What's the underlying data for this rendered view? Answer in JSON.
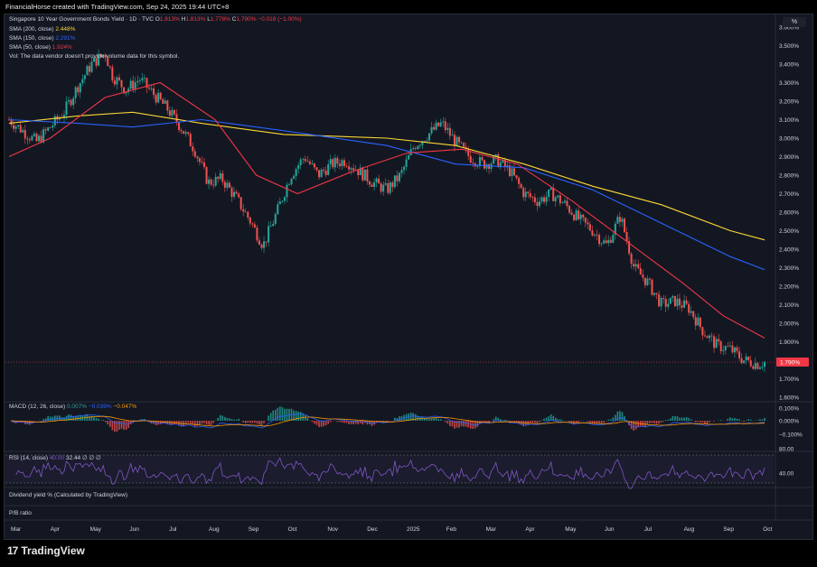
{
  "header": {
    "title": "FinancialHorse created with TradingView.com, Sep 24, 2025 19:44 UTC+8"
  },
  "symbol": {
    "name": "Singapore 10 Year Government Bonds Yield · 1D · TVC",
    "o_label": "O",
    "o_value": "1.813%",
    "h_label": "H",
    "h_value": "1.813%",
    "l_label": "L",
    "l_value": "1.778%",
    "c_label": "C",
    "c_value": "1.790%",
    "change": "−0.018 (−1.00%)"
  },
  "sma200": {
    "label": "SMA (200, close)",
    "value": "2.448%"
  },
  "sma150": {
    "label": "SMA (150, close)",
    "value": "2.291%"
  },
  "sma50": {
    "label": "SMA (50, close)",
    "value": "1.924%"
  },
  "vol_note": "Vol: The data vendor doesn't provide volume data for this symbol.",
  "macd": {
    "label": "MACD (12, 26, close)",
    "v1": "0.007%",
    "v2": "−0.039%",
    "v3": "−0.047%"
  },
  "rsi": {
    "label": "RSI (14, close)",
    "v1": "40.00",
    "v2": "32.44",
    "v3": "∅",
    "v4": "∅",
    "v5": "∅"
  },
  "dividend_label": "Dividend yield % (Calculated by TradingView)",
  "pb_label": "P/B ratio",
  "scale_unit": "%",
  "logo_text": "TradingView",
  "logo_mark": "17",
  "colors": {
    "background": "#131722",
    "up": "#26a69a",
    "down": "#ef5350",
    "sma200": "#fdd835",
    "sma150": "#2962ff",
    "sma50": "#f23645",
    "rsi": "#7e57c2",
    "macd_signal": "#ff9800",
    "price_tag": "#f23645"
  },
  "chart_data": {
    "type": "candlestick",
    "title": "Singapore 10 Year Government Bonds Yield · 1D · TVC",
    "ylim": [
      1.6,
      3.6
    ],
    "y_unit": "%",
    "price_ticks": [
      "3.600%",
      "3.500%",
      "3.400%",
      "3.300%",
      "3.200%",
      "3.100%",
      "3.000%",
      "2.900%",
      "2.800%",
      "2.700%",
      "2.600%",
      "2.500%",
      "2.400%",
      "2.300%",
      "2.200%",
      "2.100%",
      "2.000%",
      "1.900%",
      "1.790%",
      "1.700%",
      "1.600%"
    ],
    "current_price": "1.790%",
    "x_ticks": [
      "Mar",
      "Apr",
      "May",
      "Jun",
      "Jul",
      "Aug",
      "Sep",
      "Oct",
      "Nov",
      "Dec",
      "2025",
      "Feb",
      "Mar",
      "Apr",
      "May",
      "Jun",
      "Jul",
      "Aug",
      "Sep",
      "Oct"
    ],
    "close_path": [
      [
        0,
        3.1
      ],
      [
        2,
        3.04
      ],
      [
        4,
        2.98
      ],
      [
        6,
        3.06
      ],
      [
        8,
        3.14
      ],
      [
        10,
        3.28
      ],
      [
        12,
        3.4
      ],
      [
        14,
        3.46
      ],
      [
        15,
        3.34
      ],
      [
        17,
        3.26
      ],
      [
        19,
        3.32
      ],
      [
        21,
        3.24
      ],
      [
        23,
        3.16
      ],
      [
        25,
        3.06
      ],
      [
        27,
        2.94
      ],
      [
        29,
        2.76
      ],
      [
        31,
        2.78
      ],
      [
        33,
        2.68
      ],
      [
        35,
        2.56
      ],
      [
        37,
        2.42
      ],
      [
        39,
        2.6
      ],
      [
        41,
        2.8
      ],
      [
        43,
        2.9
      ],
      [
        45,
        2.8
      ],
      [
        47,
        2.86
      ],
      [
        49,
        2.88
      ],
      [
        51,
        2.82
      ],
      [
        53,
        2.76
      ],
      [
        55,
        2.72
      ],
      [
        57,
        2.8
      ],
      [
        59,
        2.96
      ],
      [
        61,
        3.02
      ],
      [
        63,
        3.08
      ],
      [
        65,
        2.98
      ],
      [
        67,
        2.9
      ],
      [
        69,
        2.86
      ],
      [
        71,
        2.88
      ],
      [
        73,
        2.82
      ],
      [
        75,
        2.7
      ],
      [
        77,
        2.66
      ],
      [
        79,
        2.7
      ],
      [
        81,
        2.64
      ],
      [
        83,
        2.56
      ],
      [
        85,
        2.5
      ],
      [
        87,
        2.42
      ],
      [
        89,
        2.58
      ],
      [
        91,
        2.3
      ],
      [
        93,
        2.22
      ],
      [
        95,
        2.1
      ],
      [
        97,
        2.12
      ],
      [
        99,
        2.08
      ],
      [
        101,
        1.96
      ],
      [
        103,
        1.88
      ],
      [
        105,
        1.86
      ],
      [
        107,
        1.8
      ],
      [
        109,
        1.78
      ],
      [
        110,
        1.79
      ]
    ],
    "x_max": 110,
    "sma200_path": [
      [
        0,
        3.08
      ],
      [
        10,
        3.12
      ],
      [
        18,
        3.14
      ],
      [
        28,
        3.08
      ],
      [
        40,
        3.02
      ],
      [
        55,
        3.0
      ],
      [
        65,
        2.96
      ],
      [
        75,
        2.86
      ],
      [
        85,
        2.74
      ],
      [
        95,
        2.64
      ],
      [
        105,
        2.5
      ],
      [
        110,
        2.45
      ]
    ],
    "sma150_path": [
      [
        0,
        3.1
      ],
      [
        10,
        3.08
      ],
      [
        18,
        3.06
      ],
      [
        28,
        3.1
      ],
      [
        40,
        3.04
      ],
      [
        55,
        2.96
      ],
      [
        65,
        2.86
      ],
      [
        75,
        2.84
      ],
      [
        85,
        2.72
      ],
      [
        95,
        2.54
      ],
      [
        105,
        2.36
      ],
      [
        110,
        2.29
      ]
    ],
    "sma50_path": [
      [
        0,
        2.9
      ],
      [
        6,
        3.0
      ],
      [
        14,
        3.22
      ],
      [
        22,
        3.3
      ],
      [
        30,
        3.1
      ],
      [
        36,
        2.8
      ],
      [
        42,
        2.7
      ],
      [
        50,
        2.82
      ],
      [
        58,
        2.92
      ],
      [
        66,
        2.94
      ],
      [
        74,
        2.86
      ],
      [
        82,
        2.66
      ],
      [
        90,
        2.44
      ],
      [
        98,
        2.22
      ],
      [
        104,
        2.04
      ],
      [
        110,
        1.92
      ]
    ],
    "macd_ticks": [
      "0.100%",
      "0.000%",
      "−0.100%"
    ],
    "rsi_ticks": [
      "80.00",
      "40.00"
    ]
  }
}
